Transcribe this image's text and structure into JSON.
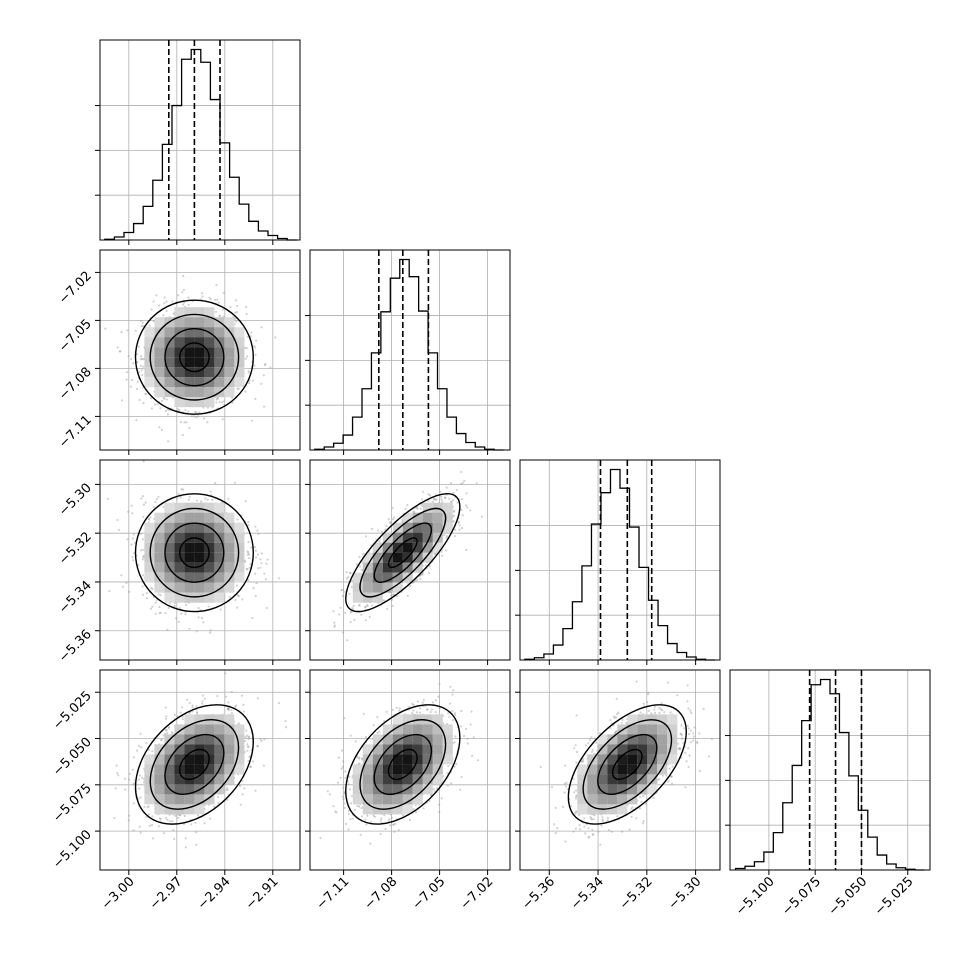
{
  "chart_data": {
    "type": "corner",
    "description_params": 4,
    "grid": true,
    "colors": {
      "line": "#000000",
      "points": "#9a9a9a",
      "grid": "#b0b0b0"
    },
    "ticks": [
      [
        "−3.00",
        "−2.97",
        "−2.94",
        "−2.91"
      ],
      [
        "−7.11",
        "−7.08",
        "−7.05",
        "−7.02"
      ],
      [
        "−5.36",
        "−5.34",
        "−5.32",
        "−5.30"
      ],
      [
        "−5.100",
        "−5.075",
        "−5.050",
        "−5.025"
      ]
    ],
    "tick_values": [
      [
        -3.0,
        -2.97,
        -2.94,
        -2.91
      ],
      [
        -7.11,
        -7.08,
        -7.05,
        -7.02
      ],
      [
        -5.36,
        -5.34,
        -5.32,
        -5.3
      ],
      [
        -5.1,
        -5.075,
        -5.05,
        -5.025
      ]
    ],
    "ranges": [
      [
        -3.018,
        -2.893
      ],
      [
        -7.131,
        -7.006
      ],
      [
        -5.372,
        -5.29
      ],
      [
        -5.121,
        -5.013
      ]
    ],
    "marginals": [
      {
        "quantiles": [
          -2.975,
          -2.959,
          -2.943
        ],
        "bins": [
          -3.015,
          -2.895
        ],
        "counts": [
          1,
          4,
          10,
          22,
          45,
          80,
          128,
          180,
          242,
          255,
          238,
          188,
          130,
          84,
          48,
          25,
          12,
          6,
          2,
          0
        ]
      },
      {
        "quantiles": [
          -7.088,
          -7.073,
          -7.057
        ],
        "bins": [
          -7.128,
          -7.01
        ],
        "counts": [
          1,
          4,
          9,
          20,
          44,
          82,
          130,
          185,
          230,
          255,
          232,
          186,
          130,
          82,
          44,
          22,
          10,
          4,
          1,
          0
        ]
      },
      {
        "quantiles": [
          -5.339,
          -5.328,
          -5.318
        ],
        "bins": [
          -5.37,
          -5.292
        ],
        "counts": [
          1,
          3,
          8,
          20,
          42,
          78,
          126,
          182,
          224,
          255,
          230,
          178,
          124,
          80,
          46,
          22,
          10,
          4,
          1,
          0
        ]
      },
      {
        "quantiles": [
          -5.078,
          -5.064,
          -5.05
        ],
        "bins": [
          -5.118,
          -5.016
        ],
        "counts": [
          2,
          5,
          11,
          24,
          50,
          90,
          140,
          200,
          248,
          255,
          236,
          184,
          126,
          80,
          44,
          20,
          8,
          3,
          1,
          0
        ]
      }
    ],
    "correlations": {
      "1_0": 0.0,
      "2_0": 0.0,
      "2_1": 0.78,
      "3_0": 0.38,
      "3_1": 0.45,
      "3_2": 0.55
    }
  }
}
